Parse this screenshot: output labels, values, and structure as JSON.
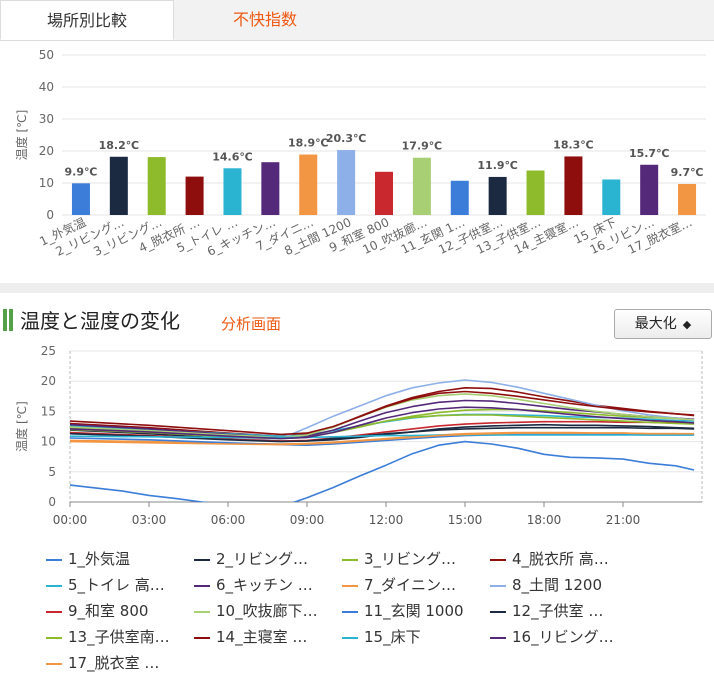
{
  "tabs": [
    {
      "label": "場所別比較",
      "active": true
    },
    {
      "label": "不快指数",
      "active": false
    }
  ],
  "colors": {
    "accent": "#56a04a",
    "link": "#ee5a13"
  },
  "section": {
    "title": "温度と湿度の変化",
    "link": "分析画面",
    "maximize_label": "最大化",
    "maximize_icon": "◆"
  },
  "chart_data": [
    {
      "type": "bar",
      "ylabel": "温度 [℃]",
      "ylim": [
        0,
        50
      ],
      "yticks": [
        0,
        10,
        20,
        30,
        40,
        50
      ],
      "grid": true,
      "categories": [
        "1_外気温",
        "2_リビング…",
        "3_リビング…",
        "4_脱衣所 …",
        "5_トイレ …",
        "6_キッチン…",
        "7_ダイニ…",
        "8_土間 1200",
        "9_和室 800",
        "10_吹抜廊…",
        "11_玄関 1…",
        "12_子供室…",
        "13_子供室…",
        "14_主寝室…",
        "15_床下",
        "16_リビン…",
        "17_脱衣室…"
      ],
      "values": [
        9.9,
        18.2,
        18.1,
        12.0,
        14.6,
        16.5,
        18.9,
        20.3,
        13.5,
        17.9,
        10.7,
        11.9,
        13.9,
        18.3,
        11.1,
        15.7,
        9.7
      ],
      "data_labels": [
        "9.9℃",
        "18.2℃",
        "",
        "",
        "14.6℃",
        "",
        "18.9℃",
        "20.3℃",
        "",
        "17.9℃",
        "",
        "11.9℃",
        "",
        "18.3℃",
        "",
        "15.7℃",
        "9.7℃"
      ],
      "colors": [
        "#3b7dd8",
        "#1b2a41",
        "#8dbb2c",
        "#8e0d0d",
        "#2bb3d2",
        "#55297a",
        "#f39643",
        "#8eb0e8",
        "#c8282e",
        "#a8cf74",
        "#3b7dd8",
        "#1b2a41",
        "#8dbb2c",
        "#8e0d0d",
        "#2bb3d2",
        "#55297a",
        "#f39643"
      ]
    },
    {
      "type": "line",
      "ylabel": "温度 [℃]",
      "ylim": [
        0,
        25
      ],
      "yticks": [
        0,
        5,
        10,
        15,
        20,
        25
      ],
      "xlim": [
        0,
        24
      ],
      "xticks": [
        0,
        3,
        6,
        9,
        12,
        15,
        18,
        21
      ],
      "xtick_labels": [
        "00:00",
        "03:00",
        "06:00",
        "09:00",
        "12:00",
        "15:00",
        "18:00",
        "21:00"
      ],
      "grid": true,
      "legend_position": "bottom",
      "series": [
        {
          "name": "1_外気温",
          "color": "#3b7dd8",
          "x": [
            0,
            1,
            2,
            3,
            4,
            5,
            6,
            7,
            8,
            9,
            10,
            11,
            12,
            13,
            14,
            15,
            16,
            17,
            18,
            19,
            20,
            21,
            22,
            23,
            23.7
          ],
          "y": [
            2.8,
            2.3,
            1.8,
            1.1,
            0.6,
            0,
            -0.5,
            -0.8,
            -0.8,
            0.7,
            2.4,
            4.3,
            6.1,
            8.0,
            9.4,
            10.0,
            9.6,
            8.9,
            7.9,
            7.4,
            7.3,
            7.1,
            6.4,
            6.0,
            5.3
          ]
        },
        {
          "name": "2_リビング…",
          "color": "#1b2a41",
          "x": [
            0,
            3,
            6,
            7,
            8,
            9,
            10,
            11,
            12,
            13,
            14,
            15,
            16,
            17,
            18,
            19,
            20,
            21,
            22,
            23,
            23.7
          ],
          "y": [
            11.9,
            11.3,
            10.5,
            10.2,
            10.1,
            10.1,
            10.3,
            10.7,
            11.2,
            11.6,
            12.1,
            12.4,
            12.6,
            12.7,
            12.8,
            12.7,
            12.7,
            12.6,
            12.5,
            12.3,
            12.2
          ]
        },
        {
          "name": "3_リビング…",
          "color": "#8dbb2c",
          "x": [
            0,
            3,
            6,
            8,
            9,
            10,
            11,
            12,
            13,
            14,
            15,
            16,
            17,
            18,
            19,
            20,
            21,
            22,
            23,
            23.7
          ],
          "y": [
            12.3,
            11.7,
            11.0,
            10.6,
            10.8,
            11.5,
            12.4,
            13.4,
            14.2,
            14.8,
            15.2,
            15.3,
            15.3,
            15.1,
            14.8,
            14.5,
            14.2,
            14.0,
            13.8,
            13.6
          ]
        },
        {
          "name": "4_脱衣所 高…",
          "color": "#8e0d0d",
          "x": [
            0,
            3,
            6,
            8,
            9,
            10,
            11,
            12,
            13,
            14,
            15,
            16,
            17,
            18,
            19,
            20,
            21,
            22,
            23,
            23.7
          ],
          "y": [
            13.0,
            12.3,
            11.4,
            10.9,
            11.2,
            12.4,
            14.2,
            15.9,
            17.3,
            18.3,
            18.9,
            18.8,
            18.2,
            17.4,
            16.7,
            16.0,
            15.5,
            15.0,
            14.6,
            14.3
          ]
        },
        {
          "name": "5_トイレ 高…",
          "color": "#2bb3d2",
          "x": [
            0,
            3,
            6,
            8,
            9,
            10,
            11,
            12,
            13,
            14,
            15,
            16,
            17,
            18,
            19,
            20,
            21,
            22,
            23,
            23.7
          ],
          "y": [
            12.6,
            12.0,
            11.3,
            10.9,
            11.1,
            11.8,
            12.6,
            13.3,
            13.9,
            14.3,
            14.5,
            14.5,
            14.4,
            14.3,
            14.1,
            14.0,
            13.9,
            13.7,
            13.5,
            13.4
          ]
        },
        {
          "name": "6_キッチン …",
          "color": "#55297a",
          "x": [
            0,
            3,
            6,
            8,
            9,
            10,
            11,
            12,
            13,
            14,
            15,
            16,
            17,
            18,
            19,
            20,
            21,
            22,
            23,
            23.7
          ],
          "y": [
            12.8,
            12.1,
            11.2,
            10.7,
            10.9,
            11.9,
            13.4,
            14.8,
            15.8,
            16.5,
            16.8,
            16.7,
            16.3,
            15.8,
            15.3,
            14.9,
            14.5,
            14.1,
            13.9,
            13.7
          ]
        },
        {
          "name": "7_ダイニン…",
          "color": "#f39643",
          "x": [
            0,
            3,
            6,
            8,
            9,
            10,
            11,
            12,
            13,
            14,
            15,
            16,
            17,
            18,
            19,
            20,
            21,
            22,
            23,
            23.7
          ],
          "y": [
            10.2,
            10.0,
            9.7,
            9.6,
            9.7,
            9.9,
            10.2,
            10.5,
            10.8,
            11.1,
            11.3,
            11.4,
            11.5,
            11.5,
            11.5,
            11.4,
            11.4,
            11.3,
            11.3,
            11.2
          ]
        },
        {
          "name": "8_土間 1200",
          "color": "#8eb0e8",
          "x": [
            0,
            3,
            6,
            8,
            9,
            10,
            11,
            12,
            13,
            14,
            15,
            16,
            17,
            18,
            19,
            20,
            21,
            22,
            23,
            23.7
          ],
          "y": [
            11.3,
            10.9,
            10.4,
            10.5,
            12.3,
            14.2,
            15.9,
            17.6,
            18.9,
            19.7,
            20.2,
            19.8,
            19.0,
            18.0,
            17.0,
            16.0,
            15.1,
            14.4,
            13.9,
            13.6
          ]
        },
        {
          "name": "9_和室 800",
          "color": "#c8282e",
          "x": [
            0,
            3,
            6,
            8,
            9,
            10,
            11,
            12,
            13,
            14,
            15,
            16,
            17,
            18,
            19,
            20,
            21,
            22,
            23,
            23.7
          ],
          "y": [
            11.5,
            11.0,
            10.4,
            10.1,
            10.2,
            10.6,
            11.1,
            11.6,
            12.1,
            12.6,
            12.9,
            13.1,
            13.2,
            13.3,
            13.3,
            13.3,
            13.2,
            13.2,
            13.1,
            13.0
          ]
        },
        {
          "name": "10_吹抜廊下…",
          "color": "#a8cf74",
          "x": [
            0,
            3,
            6,
            8,
            9,
            10,
            11,
            12,
            13,
            14,
            15,
            16,
            17,
            18,
            19,
            20,
            21,
            22,
            23,
            23.7
          ],
          "y": [
            12.4,
            11.8,
            11.1,
            10.7,
            11.1,
            12.4,
            14.1,
            15.7,
            16.9,
            17.6,
            17.9,
            17.6,
            17.0,
            16.3,
            15.6,
            15.0,
            14.5,
            14.1,
            13.8,
            13.6
          ]
        },
        {
          "name": "11_玄関 1000",
          "color": "#3b7dd8",
          "x": [
            0,
            3,
            6,
            8,
            9,
            10,
            11,
            12,
            13,
            14,
            15,
            16,
            17,
            18,
            19,
            20,
            21,
            22,
            23,
            23.7
          ],
          "y": [
            10.6,
            10.3,
            9.8,
            9.5,
            9.4,
            9.6,
            9.9,
            10.2,
            10.5,
            10.8,
            11.0,
            11.1,
            11.2,
            11.2,
            11.2,
            11.2,
            11.2,
            11.1,
            11.1,
            11.1
          ]
        },
        {
          "name": "12_子供室 …",
          "color": "#1b2a41",
          "x": [
            0,
            3,
            6,
            8,
            9,
            10,
            11,
            12,
            13,
            14,
            15,
            16,
            17,
            18,
            19,
            20,
            21,
            22,
            23,
            23.7
          ],
          "y": [
            11.3,
            10.9,
            10.3,
            10.0,
            10.1,
            10.5,
            10.9,
            11.3,
            11.6,
            11.9,
            12.1,
            12.2,
            12.3,
            12.3,
            12.3,
            12.3,
            12.3,
            12.2,
            12.2,
            12.1
          ]
        },
        {
          "name": "13_子供室南…",
          "color": "#8dbb2c",
          "x": [
            0,
            3,
            6,
            8,
            9,
            10,
            11,
            12,
            13,
            14,
            15,
            16,
            17,
            18,
            19,
            20,
            21,
            22,
            23,
            23.7
          ],
          "y": [
            12.0,
            11.5,
            10.8,
            10.5,
            10.7,
            11.5,
            12.5,
            13.4,
            14.0,
            14.3,
            14.4,
            14.4,
            14.2,
            14.0,
            13.8,
            13.6,
            13.4,
            13.2,
            13.0,
            12.9
          ]
        },
        {
          "name": "14_主寝室 …",
          "color": "#8e0d0d",
          "x": [
            0,
            3,
            6,
            8,
            9,
            10,
            11,
            12,
            13,
            14,
            15,
            16,
            17,
            18,
            19,
            20,
            21,
            22,
            23,
            23.7
          ],
          "y": [
            13.4,
            12.7,
            11.8,
            11.2,
            11.4,
            12.5,
            14.1,
            15.8,
            17.1,
            18.0,
            18.3,
            18.0,
            17.5,
            16.9,
            16.3,
            15.8,
            15.3,
            14.9,
            14.6,
            14.4
          ]
        },
        {
          "name": "15_床下",
          "color": "#2bb3d2",
          "x": [
            0,
            3,
            6,
            8,
            9,
            10,
            11,
            12,
            13,
            14,
            15,
            16,
            17,
            18,
            19,
            20,
            21,
            22,
            23,
            23.7
          ],
          "y": [
            10.9,
            10.8,
            10.7,
            10.7,
            10.7,
            10.8,
            10.9,
            11.0,
            11.0,
            11.1,
            11.1,
            11.1,
            11.1,
            11.1,
            11.1,
            11.1,
            11.1,
            11.1,
            11.1,
            11.1
          ]
        },
        {
          "name": "16_リビング…",
          "color": "#55297a",
          "x": [
            0,
            3,
            6,
            8,
            9,
            10,
            11,
            12,
            13,
            14,
            15,
            16,
            17,
            18,
            19,
            20,
            21,
            22,
            23,
            23.7
          ],
          "y": [
            12.1,
            11.6,
            10.9,
            10.5,
            10.7,
            11.5,
            12.7,
            13.9,
            14.8,
            15.4,
            15.7,
            15.6,
            15.3,
            14.9,
            14.5,
            14.1,
            13.8,
            13.5,
            13.3,
            13.1
          ]
        },
        {
          "name": "17_脱衣室 …",
          "color": "#f39643",
          "x": [
            0,
            3,
            6,
            8,
            9,
            10,
            11,
            12,
            13,
            14,
            15,
            16,
            17,
            18,
            19,
            20,
            21,
            22,
            23,
            23.7
          ],
          "y": [
            10.0,
            9.8,
            9.6,
            9.5,
            9.6,
            9.8,
            10.1,
            10.4,
            10.7,
            11.0,
            11.2,
            11.3,
            11.4,
            11.4,
            11.4,
            11.4,
            11.4,
            11.3,
            11.3,
            11.3
          ]
        }
      ]
    }
  ]
}
